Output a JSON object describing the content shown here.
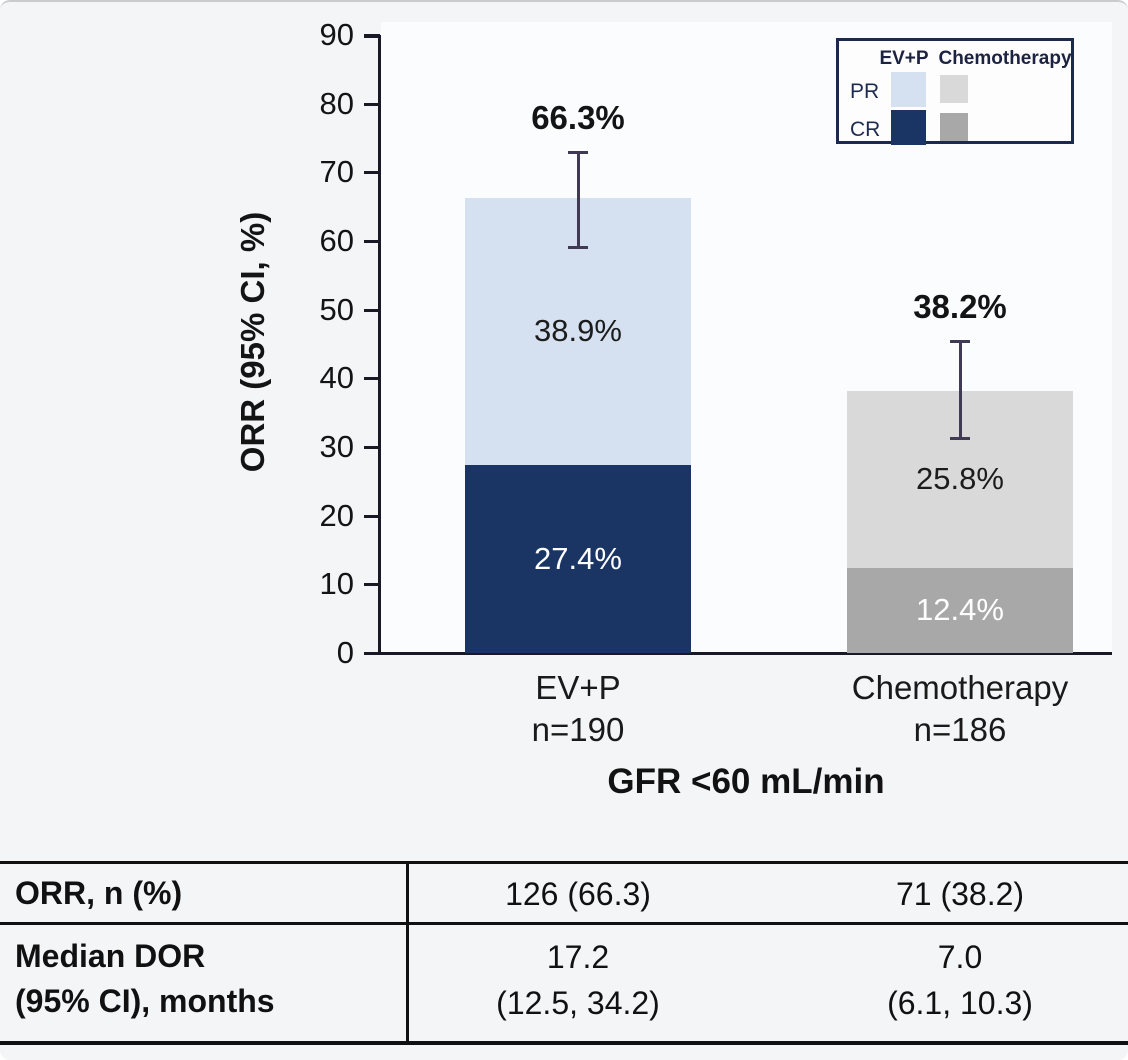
{
  "chart_data": {
    "type": "bar",
    "stacked": true,
    "title": "",
    "ylabel": "ORR (95% CI, %)",
    "xlabel": "GFR <60 mL/min",
    "ylim": [
      0,
      90
    ],
    "ytick_step": 10,
    "grid": false,
    "categories": [
      {
        "label": "EV+P",
        "sublabel": "n=190"
      },
      {
        "label": "Chemotherapy",
        "sublabel": "n=186"
      }
    ],
    "series": [
      {
        "name": "CR",
        "values": [
          27.4,
          12.4
        ],
        "colors": [
          "#1a3564",
          "#a8a8a8"
        ],
        "label_colors": [
          "#ffffff",
          "#ffffff"
        ]
      },
      {
        "name": "PR",
        "values": [
          38.9,
          25.8
        ],
        "colors": [
          "#d5e0f1",
          "#d9d9d9"
        ],
        "label_colors": [
          "#1c1c1c",
          "#1c1c1c"
        ]
      }
    ],
    "segment_labels": [
      [
        "27.4%",
        "12.4%"
      ],
      [
        "38.9%",
        "25.8%"
      ]
    ],
    "totals": [
      66.3,
      38.2
    ],
    "total_labels": [
      "66.3%",
      "38.2%"
    ],
    "error_bars": [
      {
        "low": 59.0,
        "high": 73.0
      },
      {
        "low": 31.1,
        "high": 45.5
      }
    ],
    "legend": {
      "position": "top-right",
      "column_headers": [
        "EV+P",
        "Chemotherapy"
      ],
      "rows": [
        {
          "label": "PR",
          "swatches": [
            "#d5e0f1",
            "#d9d9d9"
          ]
        },
        {
          "label": "CR",
          "swatches": [
            "#1a3564",
            "#a8a8a8"
          ]
        }
      ]
    }
  },
  "table": {
    "rows": [
      {
        "label": "ORR, n (%)",
        "values": [
          "126 (66.3)",
          "71 (38.2)"
        ]
      },
      {
        "label": "Median DOR\n(95% CI), months",
        "values": [
          "17.2\n(12.5, 34.2)",
          "7.0\n(6.1, 10.3)"
        ]
      }
    ]
  },
  "colors": {
    "cr_evp": "#1a3564",
    "pr_evp": "#d5e0f1",
    "cr_chemo": "#a8a8a8",
    "pr_chemo": "#d9d9d9",
    "axis": "#191926",
    "error_bar": "#403a54",
    "table_border": "#111111",
    "background": "#f4f5f7"
  }
}
